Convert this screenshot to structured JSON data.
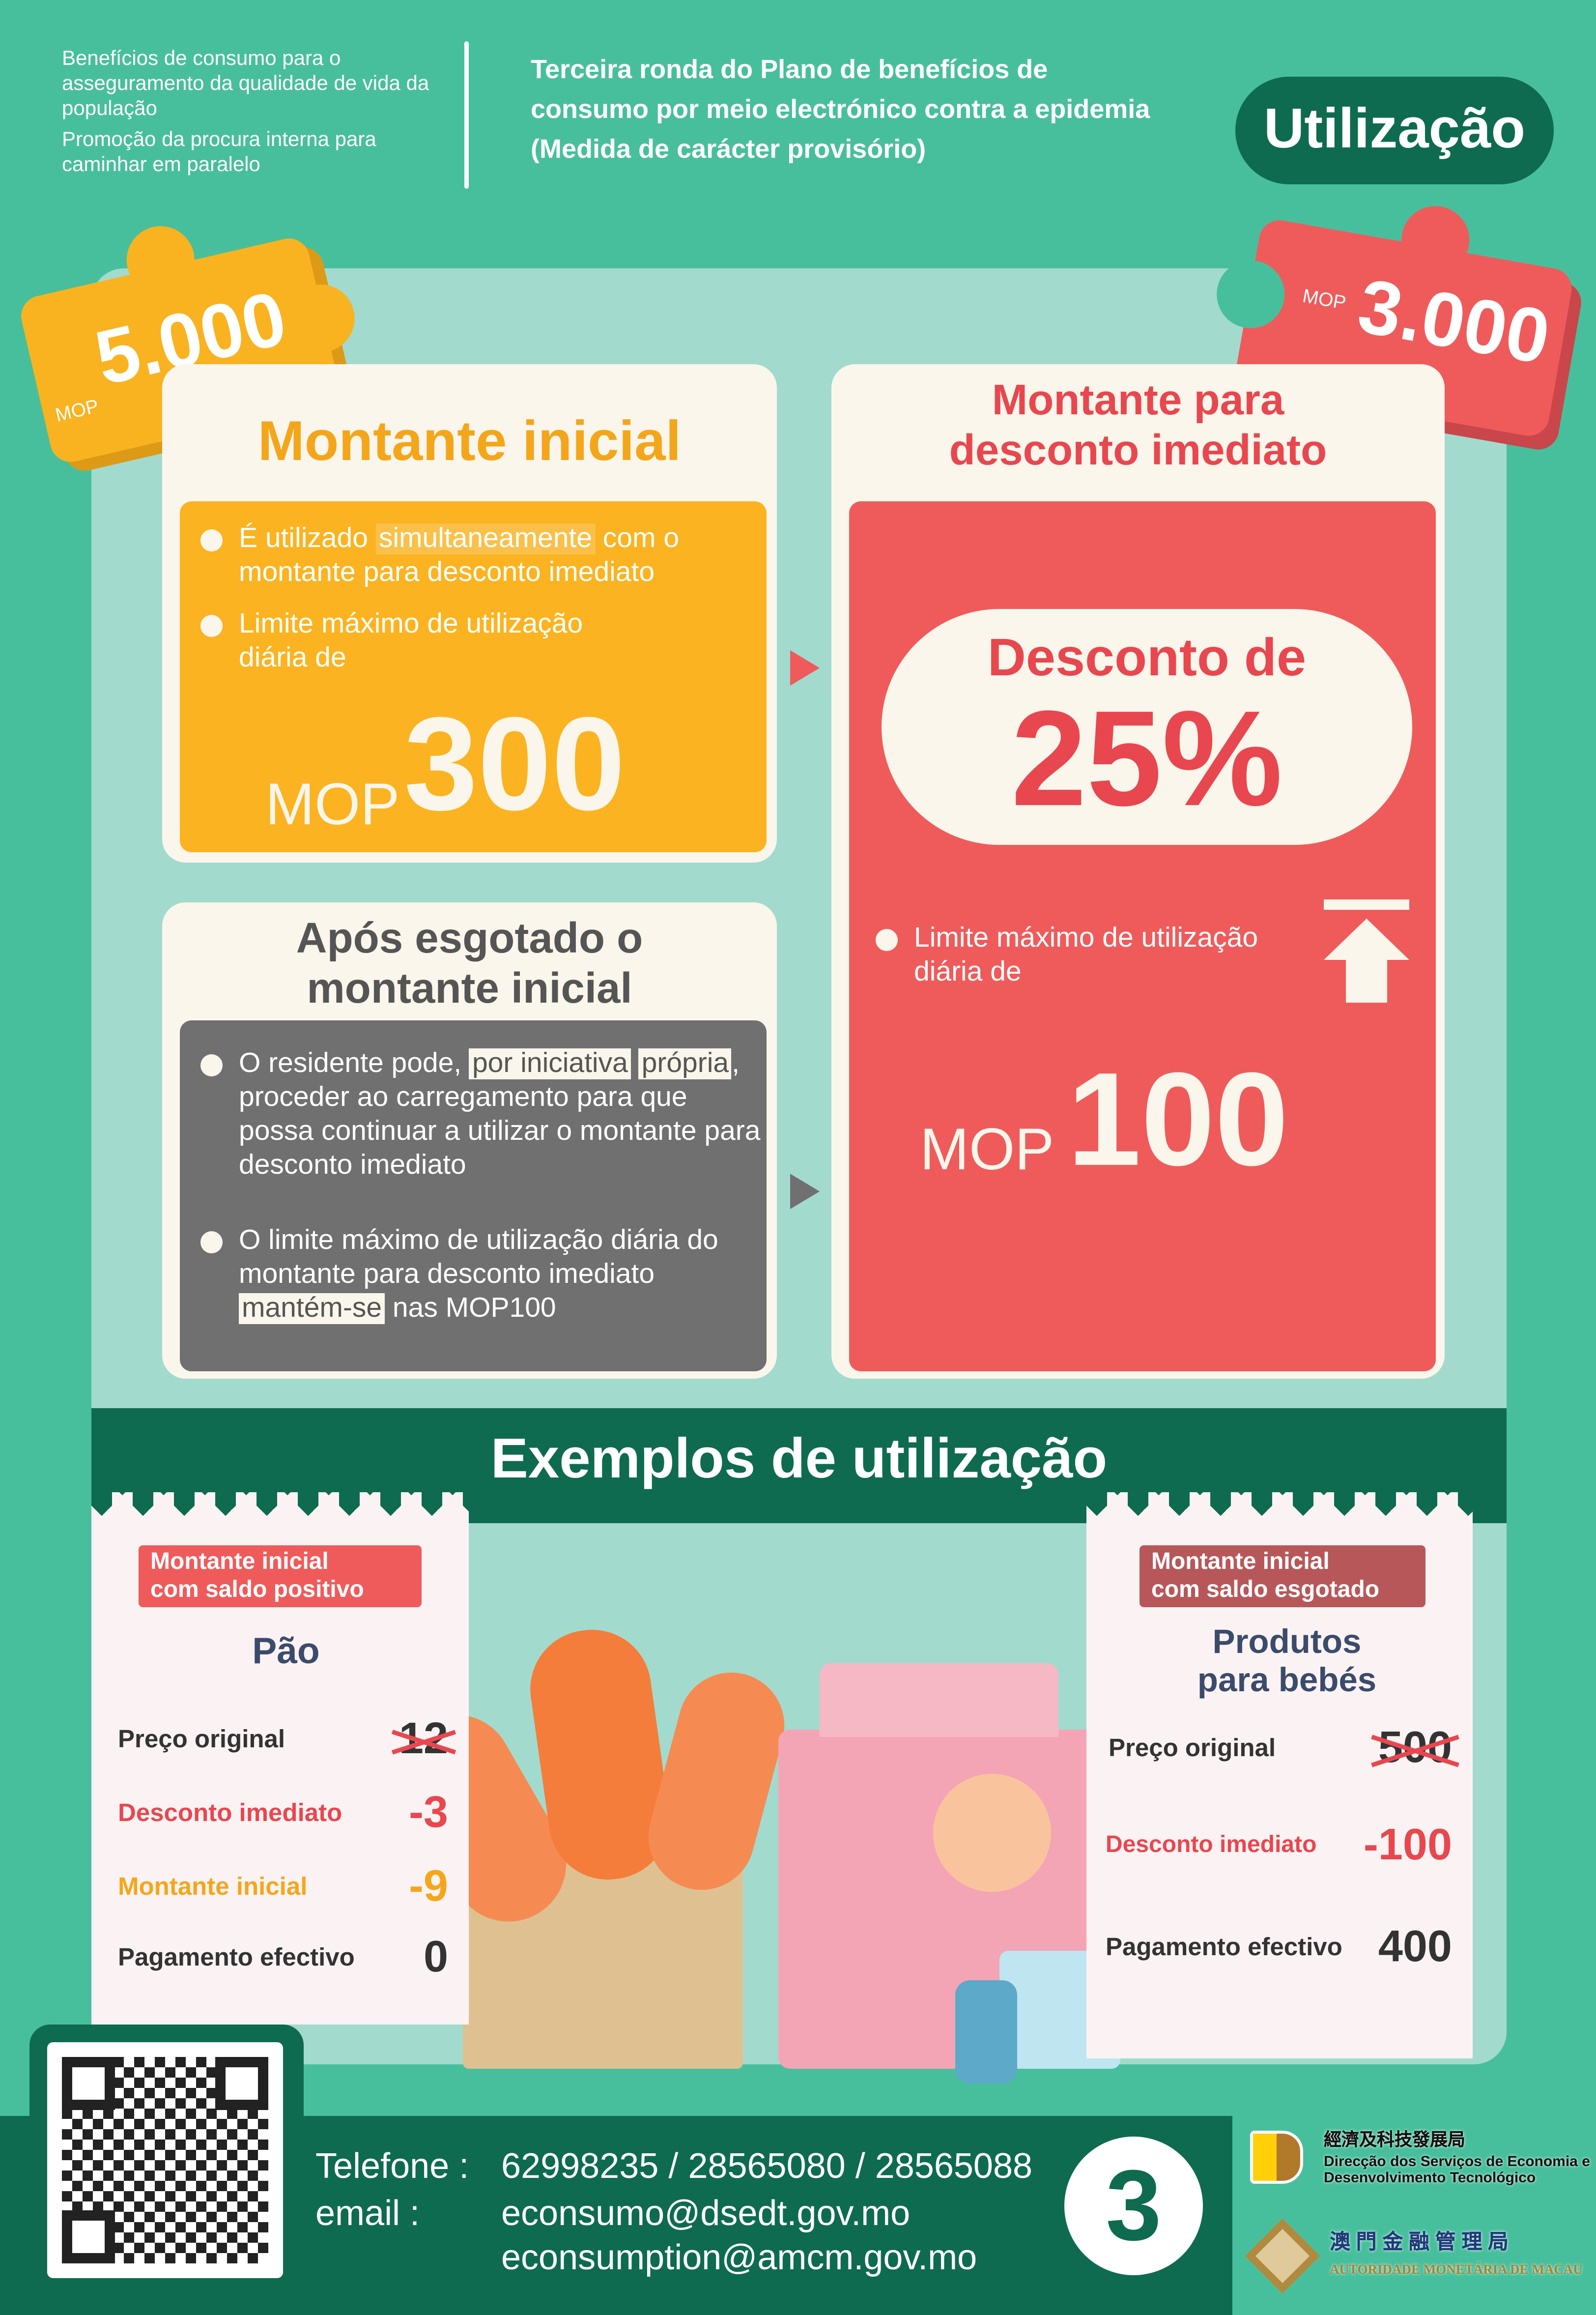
{
  "header": {
    "left_lines": [
      "Benefícios de consumo para o asseguramento da qualidade de vida da população",
      "Promoção da procura interna para caminhar em paralelo"
    ],
    "title_lines": [
      "Terceira ronda do Plano de benefícios de",
      "consumo por meio electrónico contra a epidemia",
      "(Medida de carácter provisório)"
    ],
    "badge": "Utilização"
  },
  "puzzles": {
    "initial": {
      "currency": "MOP",
      "amount": "5.000",
      "color": "#F9B320"
    },
    "discount": {
      "currency": "MOP",
      "amount": "3.000",
      "color": "#EF5B5B"
    }
  },
  "initial_card": {
    "title": "Montante inicial",
    "b1_pre": "É utilizado ",
    "b1_hl": "simultaneamente",
    "b1_post": " com o montante para desconto imediato",
    "b2": "Limite máximo de utilização diária de",
    "currency": "MOP",
    "limit": "300"
  },
  "after_card": {
    "title_lines": [
      "Após esgotado o",
      "montante inicial"
    ],
    "b1_pre": "O residente pode, ",
    "b1_hl1": "por iniciativa",
    "b1_hl2": "própria",
    "b1_post": ", proceder ao carregamento para que possa continuar a utilizar o montante para desconto imediato",
    "b2_pre": "O limite máximo de utilização diária do montante para desconto imediato ",
    "b2_hl": "mantém-se",
    "b2_post": " nas MOP100"
  },
  "discount_card": {
    "title_lines": [
      "Montante para",
      "desconto imediato"
    ],
    "pill_line1": "Desconto de",
    "pill_pct": "25%",
    "b1": "Limite máximo de utilização diária de",
    "icon": "arrow-up-limit-icon",
    "currency": "MOP",
    "limit": "100"
  },
  "examples": {
    "title": "Exemplos de utilização",
    "left": {
      "tag_lines": [
        "Montante inicial",
        "com saldo positivo"
      ],
      "item": "Pão",
      "rows": [
        {
          "label": "Preço original",
          "value": "12",
          "struck": true
        },
        {
          "label": "Desconto imediato",
          "value": "-3"
        },
        {
          "label": "Montante inicial",
          "value": "-9"
        },
        {
          "label": "Pagamento efectivo",
          "value": "0"
        }
      ]
    },
    "right": {
      "tag_lines": [
        "Montante inicial",
        "com saldo esgotado"
      ],
      "item_lines": [
        "Produtos",
        "para bebés"
      ],
      "rows": [
        {
          "label": "Preço original",
          "value": "500",
          "struck": true
        },
        {
          "label": "Desconto imediato",
          "value": "-100"
        },
        {
          "label": "Pagamento efectivo",
          "value": "400"
        }
      ]
    }
  },
  "footer": {
    "phone_label": "Telefone :",
    "phones": "62998235 / 28565080 / 28565088",
    "email_label": "email :",
    "emails": [
      "econsumo@dsedt.gov.mo",
      "econsumption@amcm.gov.mo"
    ],
    "page": "3",
    "logo1_cn": "經濟及科技發展局",
    "logo1_pt": [
      "Direcção dos Serviços de Economia e",
      "Desenvolvimento Tecnológico"
    ],
    "logo2_cn": "澳 門 金 融 管 理 局",
    "logo2_pt": "AUTORIDADE MONETÁRIA DE MACAU"
  },
  "colors": {
    "background": "#48BF9C",
    "dark_green": "#0E6B50",
    "panel": "#A3DACE",
    "yellow": "#FBB321",
    "red": "#EF5B5B",
    "gray": "#707070",
    "cream": "#FAF6EB"
  }
}
